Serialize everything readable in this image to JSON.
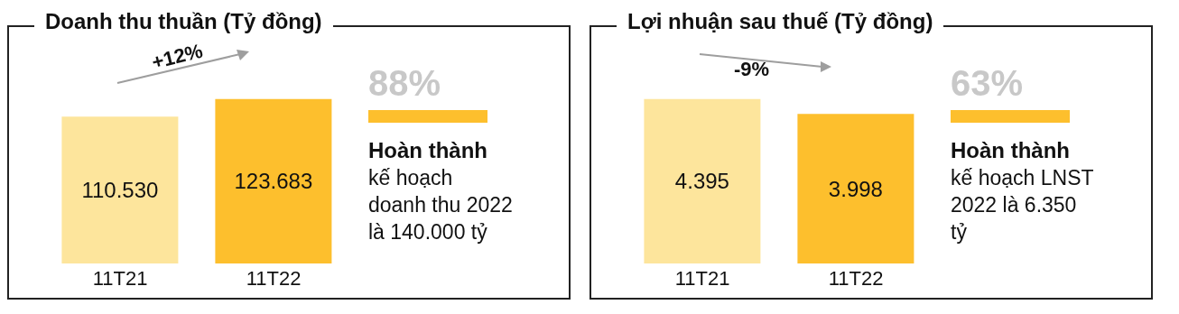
{
  "chart_data": [
    {
      "type": "bar",
      "title": "Doanh thu thuần (Tỷ đồng)",
      "categories": [
        "11T21",
        "11T22"
      ],
      "values": [
        110530,
        123683
      ],
      "colors": [
        "#fde59c",
        "#fdbf2d"
      ],
      "value_labels": [
        "110.530",
        "123.683"
      ],
      "annotations": [
        "+12%",
        "88%",
        "Hoàn thành",
        "kế hoạch doanh thu 2022 là 140.000 tỷ"
      ]
    },
    {
      "type": "bar",
      "title": "Lợi nhuận sau thuế (Tỷ đồng)",
      "categories": [
        "11T21",
        "11T22"
      ],
      "values": [
        4395,
        3998
      ],
      "colors": [
        "#fde59c",
        "#fdbf2d"
      ],
      "value_labels": [
        "4.395",
        "3.998"
      ],
      "annotations": [
        "-9%",
        "63%",
        "Hoàn thành",
        "kế hoạch LNST 2022 là 6.350 tỷ"
      ]
    }
  ]
}
